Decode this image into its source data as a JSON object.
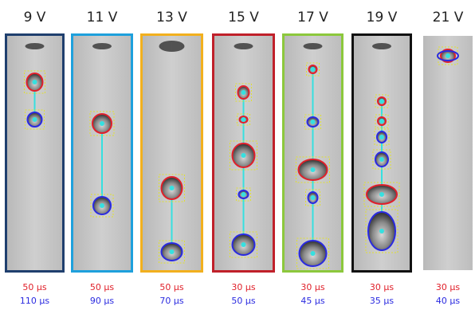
{
  "panels": [
    {
      "voltage": "9 V",
      "red_time": "50 μs",
      "blue_time": "110 μs",
      "border": "#1f3f6e"
    },
    {
      "voltage": "11 V",
      "red_time": "50 μs",
      "blue_time": "90 μs",
      "border": "#1ea0dc"
    },
    {
      "voltage": "13 V",
      "red_time": "50 μs",
      "blue_time": "70 μs",
      "border": "#f2b01e"
    },
    {
      "voltage": "15 V",
      "red_time": "30 μs",
      "blue_time": "50 μs",
      "border": "#c0202a"
    },
    {
      "voltage": "17 V",
      "red_time": "30 μs",
      "blue_time": "45 μs",
      "border": "#8cc83c"
    },
    {
      "voltage": "19 V",
      "red_time": "30 μs",
      "blue_time": "35 μs",
      "border": "#111111"
    },
    {
      "voltage": "21 V",
      "red_time": "30 μs",
      "blue_time": "40 μs",
      "border": null
    }
  ]
}
